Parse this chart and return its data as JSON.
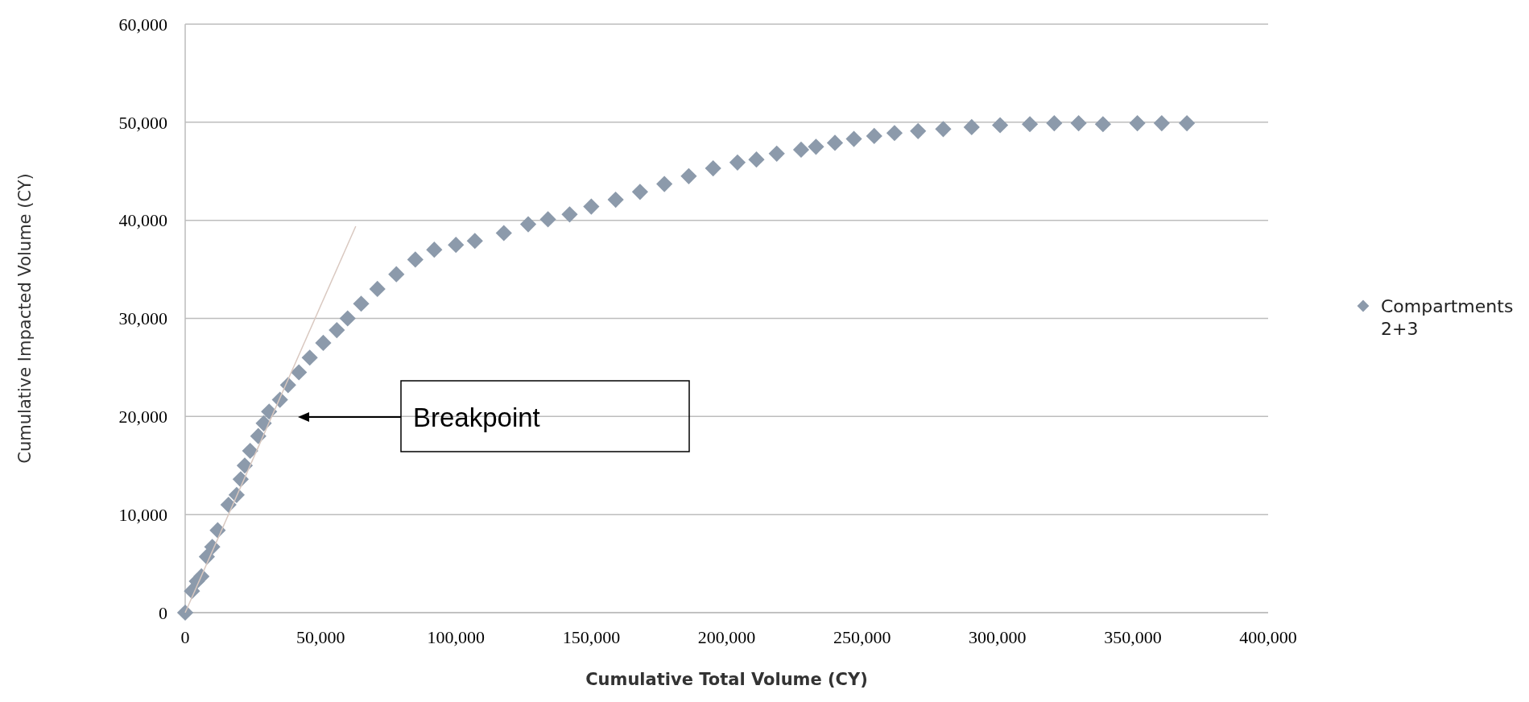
{
  "chart_data": {
    "type": "scatter",
    "xlabel": "Cumulative Total Volume (CY)",
    "ylabel": "Cumulative Impacted Volume (CY)",
    "xlim": [
      0,
      400000
    ],
    "ylim": [
      0,
      60000
    ],
    "xticks": [
      {
        "value": 0,
        "label": "0"
      },
      {
        "value": 50000,
        "label": "50,000"
      },
      {
        "value": 100000,
        "label": "100,000"
      },
      {
        "value": 150000,
        "label": "150,000"
      },
      {
        "value": 200000,
        "label": "200,000"
      },
      {
        "value": 250000,
        "label": "250,000"
      },
      {
        "value": 300000,
        "label": "300,000"
      },
      {
        "value": 350000,
        "label": "350,000"
      },
      {
        "value": 400000,
        "label": "400,000"
      }
    ],
    "yticks": [
      {
        "value": 0,
        "label": "0"
      },
      {
        "value": 10000,
        "label": "10,000"
      },
      {
        "value": 20000,
        "label": "20,000"
      },
      {
        "value": 30000,
        "label": "30,000"
      },
      {
        "value": 40000,
        "label": "40,000"
      },
      {
        "value": 50000,
        "label": "50,000"
      },
      {
        "value": 60000,
        "label": "60,000"
      }
    ],
    "grid": "y",
    "legend": "right",
    "series": [
      {
        "name": "Compartments 2+3",
        "color": "#8c9aab",
        "marker": "diamond",
        "x": [
          0,
          2500,
          4300,
          6000,
          8000,
          10000,
          12000,
          16000,
          19000,
          20500,
          22000,
          24000,
          27000,
          29000,
          31000,
          35000,
          38000,
          42000,
          46000,
          51000,
          56000,
          60000,
          65000,
          71000,
          78000,
          85000,
          92000,
          100000,
          107000,
          117700,
          126700,
          134000,
          142000,
          150000,
          159000,
          168000,
          177000,
          186000,
          195000,
          204000,
          211000,
          218500,
          227500,
          233000,
          240000,
          247000,
          254500,
          262000,
          270700,
          280000,
          290500,
          301000,
          312000,
          321000,
          330000,
          339000,
          351700,
          360700,
          370000
        ],
        "values": [
          0,
          2200,
          3200,
          3700,
          5700,
          6700,
          8400,
          11000,
          12000,
          13600,
          15000,
          16500,
          18000,
          19300,
          20500,
          21700,
          23200,
          24500,
          26000,
          27500,
          28800,
          30000,
          31500,
          33000,
          34500,
          36000,
          37000,
          37500,
          37900,
          38700,
          39600,
          40100,
          40600,
          41400,
          42100,
          42900,
          43700,
          44500,
          45300,
          45900,
          46200,
          46800,
          47200,
          47500,
          47900,
          48300,
          48600,
          48900,
          49100,
          49300,
          49500,
          49700,
          49800,
          49900,
          49900,
          49800,
          49900,
          49900,
          49900
        ]
      },
      {
        "type": "line",
        "color": "#d9c8c0",
        "x": [
          0,
          63000
        ],
        "values": [
          0,
          39400
        ]
      }
    ],
    "annotations": [
      "Breakpoint"
    ]
  }
}
